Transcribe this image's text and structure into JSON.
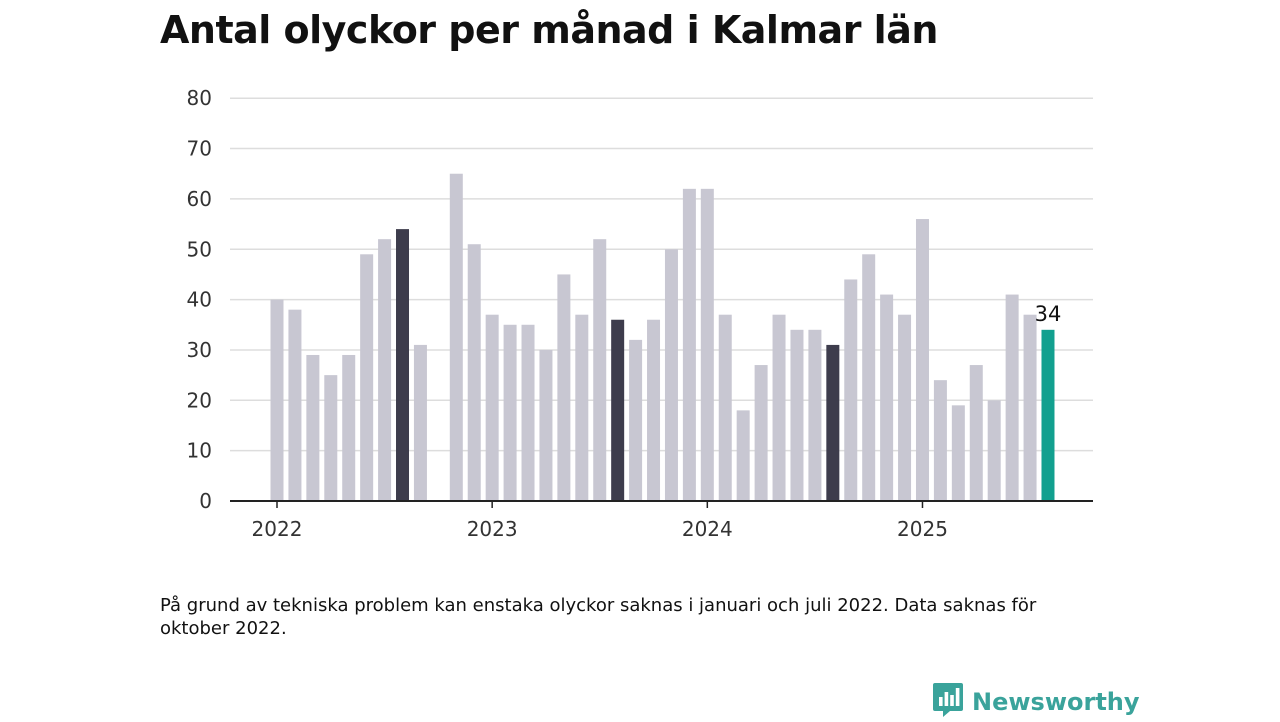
{
  "title": "Antal olyckor per månad i Kalmar län",
  "note": "På grund av tekniska problem kan enstaka olyckor saknas i januari och juli 2022. Data saknas för oktober 2022.",
  "brand": {
    "name": "Newsworthy",
    "icon": "newsworthy-logo-icon",
    "color": "#3aa39b"
  },
  "chart_data": {
    "type": "bar",
    "title": "Antal olyckor per månad i Kalmar län",
    "xlabel": "",
    "ylabel": "",
    "ylim": [
      0,
      80
    ],
    "yticks": [
      0,
      10,
      20,
      30,
      40,
      50,
      60,
      70,
      80
    ],
    "xtick_labels": [
      "2022",
      "2023",
      "2024",
      "2025"
    ],
    "grid": true,
    "categories": [
      "2022-01",
      "2022-02",
      "2022-03",
      "2022-04",
      "2022-05",
      "2022-06",
      "2022-07",
      "2022-08",
      "2022-09",
      "2022-10",
      "2022-11",
      "2022-12",
      "2023-01",
      "2023-02",
      "2023-03",
      "2023-04",
      "2023-05",
      "2023-06",
      "2023-07",
      "2023-08",
      "2023-09",
      "2023-10",
      "2023-11",
      "2023-12",
      "2024-01",
      "2024-02",
      "2024-03",
      "2024-04",
      "2024-05",
      "2024-06",
      "2024-07",
      "2024-08",
      "2024-09",
      "2024-10",
      "2024-11",
      "2024-12",
      "2025-01",
      "2025-02",
      "2025-03",
      "2025-04",
      "2025-05",
      "2025-06",
      "2025-07",
      "2025-08"
    ],
    "values": [
      40,
      38,
      29,
      25,
      29,
      49,
      52,
      54,
      31,
      null,
      65,
      51,
      37,
      35,
      35,
      30,
      45,
      37,
      52,
      36,
      32,
      36,
      50,
      62,
      62,
      37,
      18,
      27,
      37,
      34,
      34,
      31,
      44,
      49,
      41,
      37,
      56,
      24,
      19,
      27,
      20,
      41,
      37,
      34
    ],
    "highlighted": [
      "2022-08",
      "2023-08",
      "2024-08"
    ],
    "current": "2025-08",
    "data_labels": [
      {
        "category": "2025-08",
        "text": "34"
      }
    ],
    "colors": {
      "bar": "#c8c7d2",
      "highlight": "#3d3c4c",
      "current": "#12a08f",
      "grid": "#dddddd",
      "axis": "#222222"
    }
  }
}
